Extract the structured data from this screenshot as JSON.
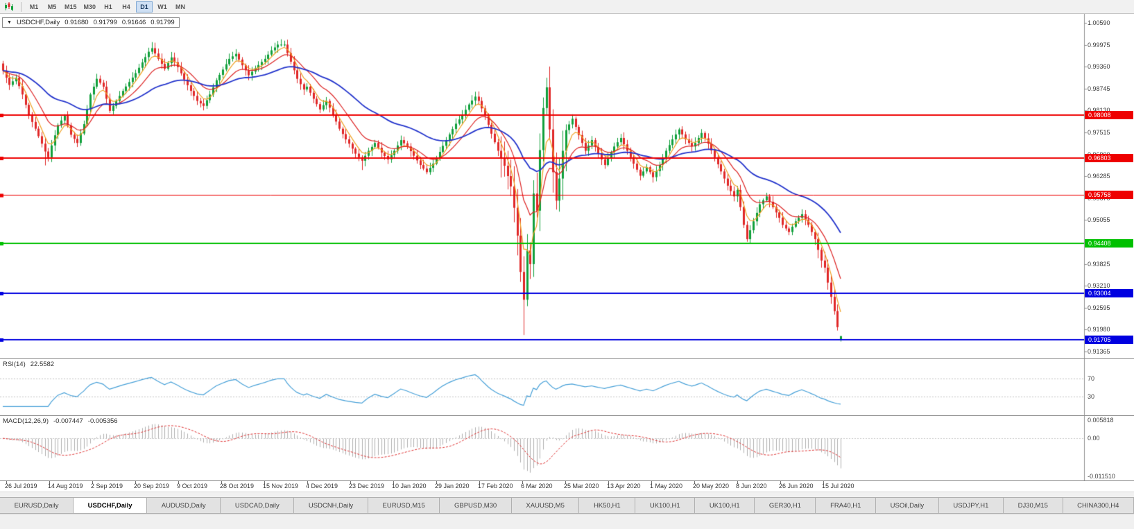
{
  "toolbar": {
    "timeframes": [
      {
        "label": "M1",
        "active": false
      },
      {
        "label": "M5",
        "active": false
      },
      {
        "label": "M15",
        "active": false
      },
      {
        "label": "M30",
        "active": false
      },
      {
        "label": "H1",
        "active": false
      },
      {
        "label": "H4",
        "active": false
      },
      {
        "label": "D1",
        "active": true
      },
      {
        "label": "W1",
        "active": false
      },
      {
        "label": "MN",
        "active": false
      }
    ]
  },
  "chart_data": {
    "type": "candlestick",
    "symbol": "USDCHF",
    "timeframe": "Daily",
    "header": {
      "symbol": "USDCHF,Daily",
      "open": "0.91680",
      "high": "0.91799",
      "low": "0.91646",
      "close": "0.91799"
    },
    "num_candles": 260,
    "close_anchors": [
      [
        0,
        0.9925
      ],
      [
        2,
        0.9885
      ],
      [
        4,
        0.9905
      ],
      [
        6,
        0.9858
      ],
      [
        8,
        0.98
      ],
      [
        10,
        0.9762
      ],
      [
        12,
        0.972
      ],
      [
        13,
        0.9698
      ],
      [
        14,
        0.9682
      ],
      [
        15,
        0.9715
      ],
      [
        17,
        0.9772
      ],
      [
        19,
        0.9798
      ],
      [
        21,
        0.9745
      ],
      [
        23,
        0.9722
      ],
      [
        25,
        0.9775
      ],
      [
        27,
        0.9858
      ],
      [
        29,
        0.9902
      ],
      [
        31,
        0.988
      ],
      [
        33,
        0.9812
      ],
      [
        35,
        0.984
      ],
      [
        37,
        0.9868
      ],
      [
        39,
        0.9893
      ],
      [
        41,
        0.9918
      ],
      [
        43,
        0.9948
      ],
      [
        45,
        0.9978
      ],
      [
        46,
        0.9988
      ],
      [
        48,
        0.9958
      ],
      [
        50,
        0.993
      ],
      [
        52,
        0.9962
      ],
      [
        54,
        0.9935
      ],
      [
        56,
        0.99
      ],
      [
        58,
        0.9868
      ],
      [
        60,
        0.984
      ],
      [
        62,
        0.9826
      ],
      [
        64,
        0.9858
      ],
      [
        66,
        0.9898
      ],
      [
        68,
        0.9928
      ],
      [
        70,
        0.9958
      ],
      [
        72,
        0.9972
      ],
      [
        74,
        0.994
      ],
      [
        76,
        0.9912
      ],
      [
        78,
        0.9932
      ],
      [
        81,
        0.9958
      ],
      [
        83,
        0.9982
      ],
      [
        85,
        0.9998
      ],
      [
        87,
        0.9998
      ],
      [
        89,
        0.995
      ],
      [
        91,
        0.9902
      ],
      [
        93,
        0.9872
      ],
      [
        94,
        0.988
      ],
      [
        96,
        0.9846
      ],
      [
        98,
        0.9816
      ],
      [
        100,
        0.984
      ],
      [
        102,
        0.9802
      ],
      [
        104,
        0.9762
      ],
      [
        106,
        0.9732
      ],
      [
        107,
        0.972
      ],
      [
        109,
        0.9692
      ],
      [
        111,
        0.9672
      ],
      [
        113,
        0.97
      ],
      [
        115,
        0.9722
      ],
      [
        117,
        0.9695
      ],
      [
        119,
        0.9676
      ],
      [
        121,
        0.97
      ],
      [
        123,
        0.973
      ],
      [
        125,
        0.9712
      ],
      [
        127,
        0.9686
      ],
      [
        129,
        0.966
      ],
      [
        131,
        0.964
      ],
      [
        133,
        0.9664
      ],
      [
        134,
        0.968
      ],
      [
        136,
        0.9714
      ],
      [
        138,
        0.9746
      ],
      [
        140,
        0.9776
      ],
      [
        142,
        0.98
      ],
      [
        144,
        0.983
      ],
      [
        146,
        0.9852
      ],
      [
        147,
        0.984
      ],
      [
        149,
        0.9798
      ],
      [
        151,
        0.9748
      ],
      [
        153,
        0.97
      ],
      [
        155,
        0.9658
      ],
      [
        157,
        0.96
      ],
      [
        158,
        0.954
      ],
      [
        159,
        0.9462
      ],
      [
        160,
        0.936
      ],
      [
        161,
        0.9282
      ],
      [
        162,
        0.942
      ],
      [
        163,
        0.9382
      ],
      [
        164,
        0.958
      ],
      [
        165,
        0.9532
      ],
      [
        166,
        0.9702
      ],
      [
        167,
        0.982
      ],
      [
        168,
        0.9878
      ],
      [
        169,
        0.976
      ],
      [
        170,
        0.964
      ],
      [
        171,
        0.956
      ],
      [
        172,
        0.9622
      ],
      [
        173,
        0.97
      ],
      [
        174,
        0.9758
      ],
      [
        176,
        0.979
      ],
      [
        178,
        0.9744
      ],
      [
        180,
        0.97
      ],
      [
        182,
        0.973
      ],
      [
        184,
        0.9692
      ],
      [
        186,
        0.966
      ],
      [
        187,
        0.968
      ],
      [
        189,
        0.9712
      ],
      [
        191,
        0.9736
      ],
      [
        193,
        0.97
      ],
      [
        195,
        0.9664
      ],
      [
        197,
        0.963
      ],
      [
        199,
        0.9654
      ],
      [
        201,
        0.9626
      ],
      [
        203,
        0.966
      ],
      [
        205,
        0.97
      ],
      [
        207,
        0.9732
      ],
      [
        209,
        0.976
      ],
      [
        211,
        0.9732
      ],
      [
        213,
        0.9712
      ],
      [
        214,
        0.9722
      ],
      [
        216,
        0.975
      ],
      [
        218,
        0.972
      ],
      [
        220,
        0.9682
      ],
      [
        222,
        0.9642
      ],
      [
        224,
        0.9602
      ],
      [
        226,
        0.9572
      ],
      [
        227,
        0.959
      ],
      [
        228,
        0.9542
      ],
      [
        229,
        0.9492
      ],
      [
        230,
        0.9452
      ],
      [
        232,
        0.9502
      ],
      [
        234,
        0.955
      ],
      [
        236,
        0.9572
      ],
      [
        238,
        0.9542
      ],
      [
        240,
        0.9512
      ],
      [
        241,
        0.9492
      ],
      [
        243,
        0.9472
      ],
      [
        245,
        0.9502
      ],
      [
        247,
        0.9522
      ],
      [
        249,
        0.9492
      ],
      [
        251,
        0.9452
      ],
      [
        252,
        0.9422
      ],
      [
        253,
        0.9392
      ],
      [
        254,
        0.9372
      ],
      [
        255,
        0.933
      ],
      [
        256,
        0.929
      ],
      [
        257,
        0.925
      ],
      [
        258,
        0.9205
      ],
      [
        259,
        0.91799
      ]
    ],
    "wick_overrides": {
      "13": {
        "low": 0.9659
      },
      "46": {
        "high": 1.0005
      },
      "87": {
        "high": 1.0009
      },
      "111": {
        "low": 0.9646
      },
      "161": {
        "low": 0.9183
      },
      "168": {
        "high": 0.9905
      }
    },
    "last_ohlc": {
      "open": 0.9168,
      "high": 0.91799,
      "low": 0.91646,
      "close": 0.91799
    },
    "price_axis": {
      "min": 0.911719,
      "max": 1.008429,
      "labels": [
        "1.00590",
        "0.99975",
        "0.99360",
        "0.98745",
        "0.98130",
        "0.97515",
        "0.96900",
        "0.96285",
        "0.95670",
        "0.95055",
        "0.94440",
        "0.93825",
        "0.93210",
        "0.92595",
        "0.91980",
        "0.91365"
      ]
    },
    "levels": [
      {
        "price": 0.98008,
        "label": "0.98008",
        "color": "#ee0000",
        "width": 2
      },
      {
        "price": 0.96803,
        "label": "0.96803",
        "color": "#ee0000",
        "width": 2
      },
      {
        "price": 0.95758,
        "label": "0.95758",
        "color": "#ee0000",
        "width": 1
      },
      {
        "price": 0.94408,
        "label": "0.94408",
        "color": "#00c000",
        "width": 2
      },
      {
        "price": 0.93004,
        "label": "0.93004",
        "color": "#0000e0",
        "width": 2
      },
      {
        "price": 0.91705,
        "label": "0.91705",
        "color": "#0000e0",
        "width": 2
      }
    ],
    "moving_averages": [
      {
        "name": "fast-ma",
        "period": 5,
        "color": "#f0a020"
      },
      {
        "name": "medium-ma",
        "period": 13,
        "color": "#dd2222"
      },
      {
        "name": "slow-ma",
        "period": 40,
        "color": "#2233cc"
      }
    ],
    "candle_colors": {
      "up": "#11a03c",
      "down": "#e02828"
    },
    "x_axis_dates": [
      "26 Jul 2019",
      "14 Aug 2019",
      "2 Sep 2019",
      "20 Sep 2019",
      "9 Oct 2019",
      "28 Oct 2019",
      "15 Nov 2019",
      "4 Dec 2019",
      "23 Dec 2019",
      "10 Jan 2020",
      "29 Jan 2020",
      "17 Feb 2020",
      "6 Mar 2020",
      "25 Mar 2020",
      "13 Apr 2020",
      "1 May 2020",
      "20 May 2020",
      "8 Jun 2020",
      "26 Jun 2020",
      "15 Jul 2020"
    ],
    "indicators": {
      "rsi": {
        "label": "RSI(14)",
        "value": "22.5582",
        "period": 14,
        "levels": [
          70,
          30
        ],
        "level_labels": [
          "70",
          "30"
        ],
        "line_color": "#46a0d8"
      },
      "macd": {
        "label": "MACD(12,26,9)",
        "values": [
          "-0.007447",
          "-0.005356"
        ],
        "fast": 12,
        "slow": 26,
        "signal": 9,
        "axis": {
          "max": "0.005818",
          "zero": "0.00",
          "min": "-0.011510"
        },
        "range": [
          -0.01151,
          0.005818
        ],
        "hist_color": "#b0b0b0",
        "signal_color": "#e03030"
      }
    }
  },
  "tabs": [
    {
      "label": "EURUSD,Daily",
      "active": false
    },
    {
      "label": "USDCHF,Daily",
      "active": true
    },
    {
      "label": "AUDUSD,Daily",
      "active": false
    },
    {
      "label": "USDCAD,Daily",
      "active": false
    },
    {
      "label": "USDCNH,Daily",
      "active": false
    },
    {
      "label": "EURUSD,M15",
      "active": false
    },
    {
      "label": "GBPUSD,M30",
      "active": false
    },
    {
      "label": "XAUUSD,M5",
      "active": false
    },
    {
      "label": "HK50,H1",
      "active": false
    },
    {
      "label": "UK100,H1",
      "active": false
    },
    {
      "label": "UK100,H1",
      "active": false
    },
    {
      "label": "GER30,H1",
      "active": false
    },
    {
      "label": "FRA40,H1",
      "active": false
    },
    {
      "label": "USOil,Daily",
      "active": false
    },
    {
      "label": "USDJPY,H1",
      "active": false
    },
    {
      "label": "DJ30,M15",
      "active": false
    },
    {
      "label": "CHINA300,H4",
      "active": false
    }
  ]
}
